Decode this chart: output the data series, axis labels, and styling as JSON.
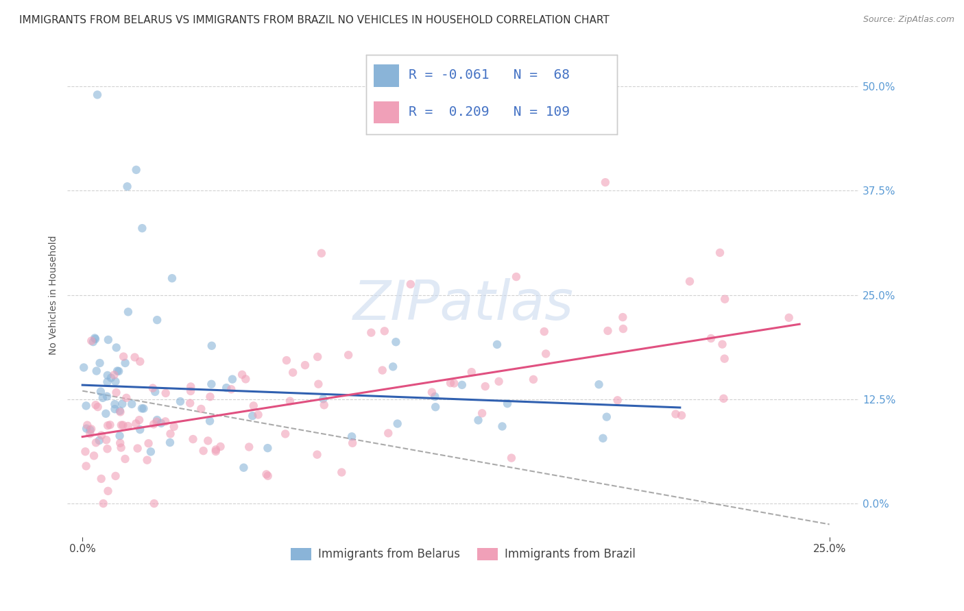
{
  "title": "IMMIGRANTS FROM BELARUS VS IMMIGRANTS FROM BRAZIL NO VEHICLES IN HOUSEHOLD CORRELATION CHART",
  "source": "Source: ZipAtlas.com",
  "ylabel": "No Vehicles in Household",
  "yticks": [
    "0.0%",
    "12.5%",
    "25.0%",
    "37.5%",
    "50.0%"
  ],
  "ytick_vals": [
    0.0,
    12.5,
    25.0,
    37.5,
    50.0
  ],
  "xlim": [
    -0.5,
    26.0
  ],
  "ylim": [
    -4.0,
    54.0
  ],
  "background_color": "#ffffff",
  "grid_color": "#cccccc",
  "watermark": "ZIPatlas",
  "title_fontsize": 11,
  "axis_label_fontsize": 10,
  "tick_fontsize": 11,
  "belarus_scatter_color": "#8ab4d8",
  "brazil_scatter_color": "#f0a0b8",
  "belarus_line_color": "#3060b0",
  "brazil_line_color": "#e05080",
  "gray_dash_color": "#aaaaaa",
  "belarus_R": -0.061,
  "belarus_N": 68,
  "brazil_R": 0.209,
  "brazil_N": 109,
  "bel_line_x0": 0.0,
  "bel_line_y0": 14.2,
  "bel_line_x1": 20.0,
  "bel_line_y1": 11.5,
  "bra_line_x0": 0.0,
  "bra_line_y0": 8.0,
  "bra_line_x1": 24.0,
  "bra_line_y1": 21.5,
  "gray_x0": 0.0,
  "gray_y0": 13.5,
  "gray_x1": 25.0,
  "gray_y1": -2.5
}
